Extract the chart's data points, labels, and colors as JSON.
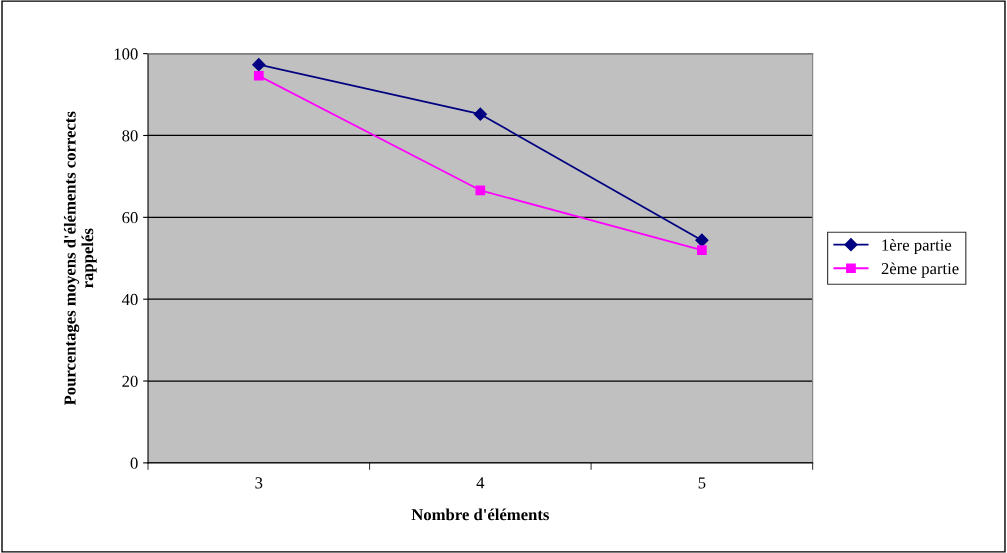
{
  "chart_data": {
    "type": "line",
    "xlabel": "Nombre d'éléments",
    "ylabel": "Pourcentages moyens d'éléments corrects\nrappelés",
    "categories": [
      "3",
      "4",
      "5"
    ],
    "series": [
      {
        "name": "1ère partie",
        "color": "#000080",
        "values": [
          97.3,
          85.2,
          54.4
        ],
        "marker": "diamond"
      },
      {
        "name": "2ème partie",
        "color": "#ff00ff",
        "values": [
          94.6,
          66.6,
          52.0
        ],
        "marker": "square"
      }
    ],
    "ylim": [
      0,
      100
    ],
    "yticks": [
      0,
      20,
      40,
      60,
      80,
      100
    ],
    "grid": "y",
    "legend": "right",
    "line_style": "solid"
  }
}
